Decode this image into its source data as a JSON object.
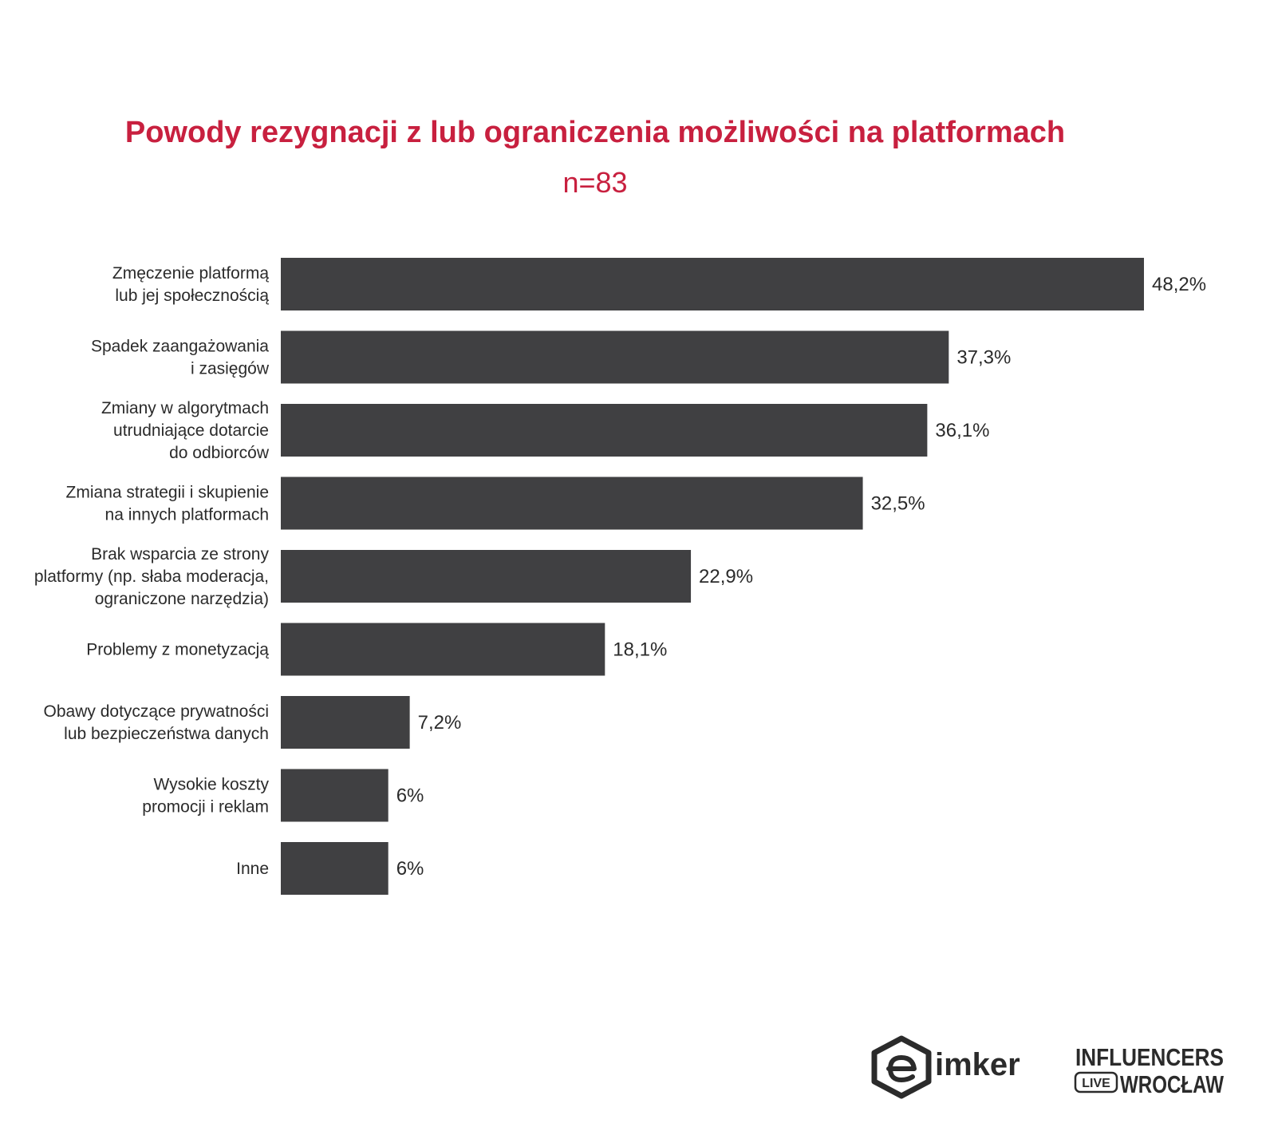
{
  "chart_data": {
    "type": "bar",
    "orientation": "horizontal",
    "title": "Powody rezygnacji z lub ograniczenia możliwości na platformach",
    "subtitle": "n=83",
    "categories": [
      [
        "Zmęczenie platformą",
        "lub jej społecznością"
      ],
      [
        "Spadek zaangażowania",
        "i zasięgów"
      ],
      [
        "Zmiany w algorytmach",
        "utrudniające dotarcie",
        "do odbiorców"
      ],
      [
        "Zmiana strategii i skupienie",
        "na innych platformach"
      ],
      [
        "Brak wsparcia ze strony",
        "platformy (np. słaba moderacja,",
        "ograniczone narzędzia)"
      ],
      [
        "Problemy z monetyzacją"
      ],
      [
        "Obawy dotyczące prywatności",
        "lub bezpieczeństwa danych"
      ],
      [
        "Wysokie koszty",
        "promocji i reklam"
      ],
      [
        "Inne"
      ]
    ],
    "values": [
      48.2,
      37.3,
      36.1,
      32.5,
      22.9,
      18.1,
      7.2,
      6,
      6
    ],
    "value_labels": [
      "48,2%",
      "37,3%",
      "36,1%",
      "32,5%",
      "22,9%",
      "18,1%",
      "7,2%",
      "6%",
      "6%"
    ],
    "xlim": [
      0,
      48.2
    ],
    "grid": false,
    "legend": "none",
    "bar_color": "#404042",
    "title_color": "#c8203f",
    "text_color": "#2b2b2b"
  },
  "logos": {
    "brand_1": "imker",
    "brand_2_line_1": "INFLUENCERS",
    "brand_2_badge": "LIVE",
    "brand_2_line_2": "WROCŁAW"
  }
}
